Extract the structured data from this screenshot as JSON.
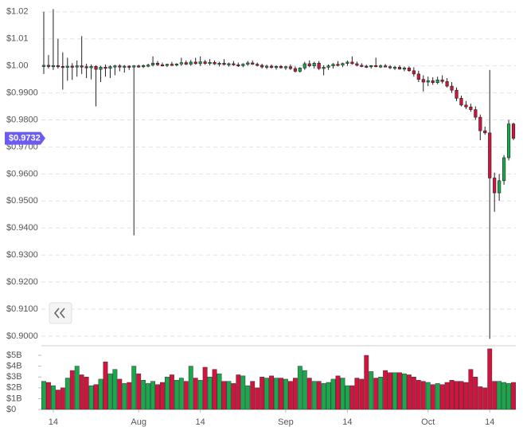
{
  "chart_data": {
    "type": "candlestick",
    "categories": [
      null,
      null,
      "14",
      null,
      null,
      null,
      null,
      null,
      null,
      null,
      null,
      null,
      null,
      null,
      null,
      null,
      null,
      null,
      null,
      null,
      "Aug",
      null,
      null,
      null,
      null,
      null,
      null,
      null,
      null,
      null,
      null,
      null,
      null,
      "14",
      null,
      null,
      null,
      null,
      null,
      null,
      null,
      null,
      null,
      null,
      null,
      null,
      null,
      null,
      null,
      null,
      null,
      "Sep",
      null,
      null,
      null,
      null,
      null,
      null,
      null,
      null,
      null,
      null,
      null,
      null,
      "14",
      null,
      null,
      null,
      null,
      null,
      null,
      null,
      null,
      null,
      null,
      null,
      null,
      null,
      null,
      null,
      null,
      "Oct",
      null,
      null,
      null,
      null,
      null,
      null,
      null,
      null,
      null,
      null,
      null,
      null,
      "14",
      null,
      null,
      null,
      null,
      null
    ],
    "open": [
      1.0,
      1.0002,
      0.9999,
      1.0001,
      0.9998,
      0.9997,
      0.9999,
      0.9996,
      1.0,
      0.9997,
      0.9993,
      0.9998,
      0.9987,
      0.9995,
      0.9991,
      0.9997,
      1.0,
      0.9996,
      0.9999,
      0.9997,
      1.0,
      0.9998,
      1.0001,
      1.0003,
      1.001,
      1.0004,
      1.0002,
      1.0006,
      1.0003,
      1.0007,
      1.0012,
      1.0006,
      1.0014,
      1.0008,
      1.0015,
      1.0009,
      1.0013,
      1.0007,
      1.001,
      1.0005,
      1.0008,
      1.0004,
      1.0001,
      1.0006,
      1.0011,
      1.0006,
      1.0002,
      0.9996,
      0.9999,
      0.9994,
      0.9998,
      0.9993,
      0.9997,
      0.999,
      0.998,
      0.9992,
      1.0008,
      1.0,
      1.001,
      0.999,
      0.9995,
      1.0,
      1.0006,
      1.0003,
      1.0009,
      1.0014,
      1.0008,
      1.0002,
      0.9999,
      0.9997,
      1.0001,
      0.9998,
      1.0,
      0.9997,
      0.9993,
      0.9995,
      0.9988,
      0.9992,
      0.9982,
      0.997,
      0.995,
      0.994,
      0.9945,
      0.9938,
      0.9948,
      0.9942,
      0.9925,
      0.991,
      0.988,
      0.9855,
      0.9848,
      0.9838,
      0.981,
      0.976,
      0.9752,
      0.9585,
      0.953,
      0.9575,
      0.966,
      0.9785
    ],
    "high": [
      1.02,
      1.004,
      1.021,
      1.01,
      1.005,
      1.003,
      1.001,
      1.002,
      1.011,
      1.0008,
      1.0005,
      1.0002,
      1.0,
      1.0005,
      1.0002,
      1.0004,
      1.0006,
      1.0003,
      1.0002,
      1.0003,
      1.0004,
      1.0005,
      1.0008,
      1.0035,
      1.0018,
      1.0012,
      1.0008,
      1.0015,
      1.001,
      1.003,
      1.002,
      1.0022,
      1.003,
      1.0035,
      1.0022,
      1.0025,
      1.002,
      1.0015,
      1.0025,
      1.0012,
      1.0018,
      1.0012,
      1.001,
      1.0018,
      1.002,
      1.0012,
      1.0008,
      1.0004,
      1.0005,
      1.0002,
      1.0003,
      1.0,
      1.0005,
      0.9998,
      0.9995,
      1.0015,
      1.002,
      1.0015,
      1.0018,
      1.0002,
      1.0005,
      1.001,
      1.0018,
      1.0012,
      1.002,
      1.0035,
      1.0016,
      1.001,
      1.0004,
      1.0003,
      1.003,
      1.0005,
      1.0007,
      1.0003,
      1.0,
      1.0002,
      0.9998,
      0.9998,
      0.9995,
      0.9982,
      0.9965,
      0.996,
      0.9958,
      0.996,
      0.9965,
      0.9955,
      0.994,
      0.992,
      0.989,
      0.987,
      0.986,
      0.985,
      0.982,
      0.9775,
      0.9985,
      0.9605,
      0.96,
      0.967,
      0.98,
      0.979
    ],
    "low": [
      0.997,
      0.999,
      0.9985,
      0.999,
      0.9912,
      0.9945,
      0.9948,
      0.996,
      0.997,
      0.9955,
      0.995,
      0.985,
      0.994,
      0.996,
      0.9955,
      0.9965,
      0.998,
      0.9975,
      0.9985,
      0.9373,
      0.9993,
      0.9992,
      0.9995,
      0.9998,
      1.0,
      0.9998,
      0.9996,
      1.0,
      0.9998,
      1.0,
      1.0003,
      1.0,
      1.0005,
      1.0,
      1.0004,
      1.0002,
      1.0004,
      0.9998,
      1.0002,
      0.9997,
      1.0,
      0.9996,
      0.9995,
      1.0,
      1.0004,
      0.9998,
      0.999,
      0.9988,
      0.999,
      0.9986,
      0.999,
      0.9985,
      0.9985,
      0.9975,
      0.9975,
      0.9985,
      0.9995,
      0.999,
      0.9985,
      0.9965,
      0.9985,
      0.999,
      0.9998,
      0.9995,
      1.0,
      1.0005,
      0.9998,
      0.9995,
      0.9992,
      0.999,
      0.9995,
      0.9992,
      0.9995,
      0.9988,
      0.9985,
      0.9986,
      0.998,
      0.9978,
      0.996,
      0.994,
      0.9905,
      0.9925,
      0.993,
      0.9932,
      0.9935,
      0.992,
      0.99,
      0.987,
      0.985,
      0.984,
      0.983,
      0.98,
      0.9725,
      0.9745,
      0.899,
      0.946,
      0.95,
      0.956,
      0.965,
      0.9725
    ],
    "close": [
      1.0002,
      0.9999,
      1.0001,
      0.9998,
      0.9997,
      0.9999,
      0.9996,
      1.0,
      0.9997,
      0.9993,
      0.9998,
      0.9987,
      0.9995,
      0.9991,
      0.9997,
      1.0,
      0.9996,
      0.9999,
      0.9997,
      1.0,
      0.9998,
      1.0001,
      1.0003,
      1.001,
      1.0004,
      1.0002,
      1.0006,
      1.0003,
      1.0007,
      1.0012,
      1.0006,
      1.0014,
      1.0008,
      1.0015,
      1.0009,
      1.0013,
      1.0007,
      1.001,
      1.0005,
      1.0008,
      1.0004,
      1.0001,
      1.0006,
      1.0011,
      1.0006,
      1.0002,
      0.9996,
      0.9999,
      0.9994,
      0.9998,
      0.9993,
      0.9997,
      0.999,
      0.998,
      0.9992,
      1.0008,
      1.0,
      1.001,
      0.999,
      0.9995,
      1.0,
      1.0006,
      1.0003,
      1.0009,
      1.0014,
      1.0008,
      1.0002,
      0.9999,
      0.9997,
      1.0001,
      0.9998,
      1.0,
      0.9997,
      0.9993,
      0.9995,
      0.9988,
      0.9992,
      0.9982,
      0.997,
      0.995,
      0.994,
      0.9945,
      0.9938,
      0.9948,
      0.9942,
      0.9925,
      0.991,
      0.988,
      0.9855,
      0.9848,
      0.9838,
      0.981,
      0.976,
      0.9752,
      0.9585,
      0.953,
      0.9575,
      0.966,
      0.9785,
      0.9732
    ],
    "volume": [
      2.6,
      2.5,
      2.2,
      1.8,
      2.0,
      2.9,
      3.6,
      4.0,
      3.2,
      3.0,
      2.2,
      2.3,
      2.8,
      4.4,
      3.3,
      3.7,
      2.8,
      2.4,
      2.5,
      4.0,
      3.3,
      2.7,
      2.4,
      2.6,
      2.3,
      2.5,
      3.0,
      3.2,
      2.7,
      2.9,
      2.6,
      4.0,
      2.9,
      2.7,
      3.9,
      3.0,
      3.7,
      3.3,
      2.6,
      2.6,
      2.4,
      3.2,
      3.1,
      2.2,
      2.6,
      2.0,
      3.0,
      2.9,
      3.1,
      2.9,
      2.9,
      2.8,
      2.6,
      2.9,
      4.0,
      3.6,
      2.9,
      2.6,
      2.6,
      2.4,
      2.5,
      2.8,
      3.1,
      2.9,
      2.2,
      2.2,
      2.9,
      2.8,
      5.0,
      3.5,
      2.9,
      3.0,
      3.6,
      3.4,
      3.4,
      3.4,
      3.3,
      3.2,
      3.0,
      2.7,
      2.6,
      2.5,
      2.3,
      2.4,
      2.3,
      2.5,
      2.7,
      2.6,
      2.6,
      2.5,
      3.7,
      3.0,
      2.1,
      2.0,
      5.6,
      2.6,
      2.6,
      2.5,
      2.4,
      2.5
    ],
    "up_color": "#1aa84c",
    "down_color": "#d3133d",
    "ylim": [
      0.8976,
      1.0229
    ],
    "yticks": [
      {
        "value": 1.02,
        "label": "$1.02"
      },
      {
        "value": 1.01,
        "label": "$1.01"
      },
      {
        "value": 1.0,
        "label": "$1.00"
      },
      {
        "value": 0.99,
        "label": "$0.9900"
      },
      {
        "value": 0.98,
        "label": "$0.9800"
      },
      {
        "value": 0.97,
        "label": "$0.9700"
      },
      {
        "value": 0.96,
        "label": "$0.9600"
      },
      {
        "value": 0.95,
        "label": "$0.9500"
      },
      {
        "value": 0.94,
        "label": "$0.9400"
      },
      {
        "value": 0.93,
        "label": "$0.9300"
      },
      {
        "value": 0.92,
        "label": "$0.9200"
      },
      {
        "value": 0.91,
        "label": "$0.9100"
      },
      {
        "value": 0.9,
        "label": "$0.9000"
      }
    ],
    "volume_lim": [
      0,
      5.59
    ],
    "volume_ticks": [
      {
        "value": 0,
        "label": "$0"
      },
      {
        "value": 1,
        "label": "$1B"
      },
      {
        "value": 2,
        "label": "$2B"
      },
      {
        "value": 3,
        "label": "$3B"
      },
      {
        "value": 4,
        "label": "$4B"
      },
      {
        "value": 5,
        "label": "$5B"
      }
    ],
    "last_price": {
      "value": 0.9732,
      "label": "$0.9732"
    },
    "last_price_color": "#6b5bf0",
    "grid": true
  }
}
